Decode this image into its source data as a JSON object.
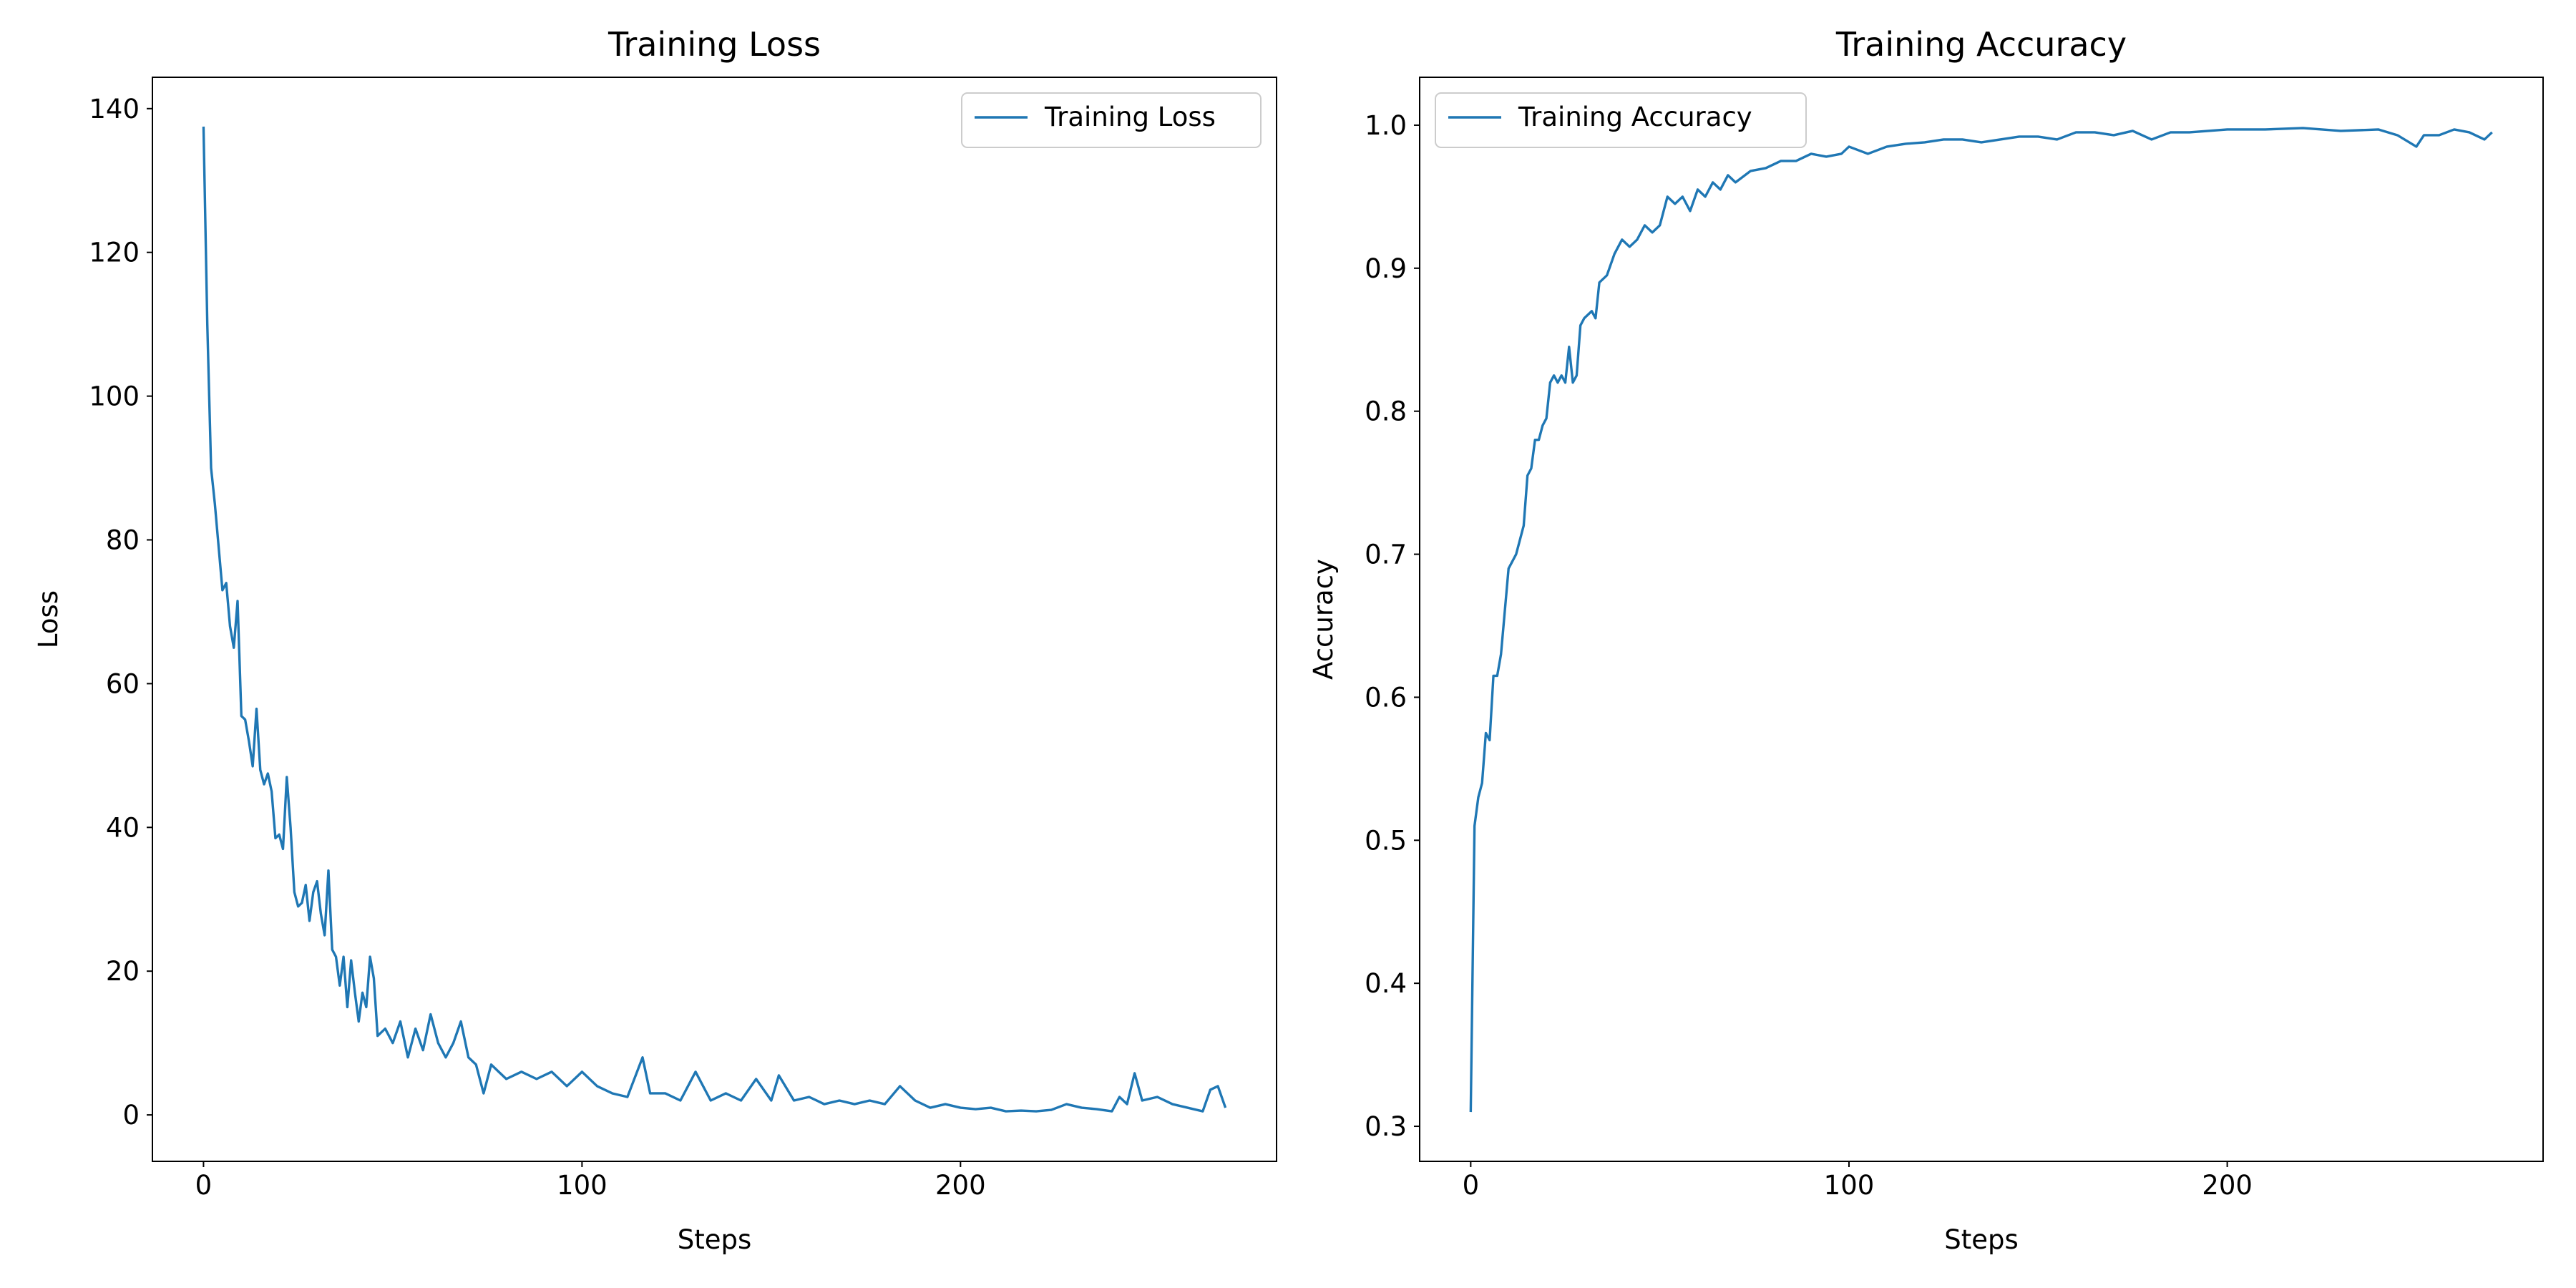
{
  "chart_data": [
    {
      "type": "line",
      "title": "Training Loss",
      "xlabel": "Steps",
      "ylabel": "Loss",
      "x": [
        0,
        1,
        2,
        3,
        4,
        5,
        6,
        7,
        8,
        9,
        10,
        11,
        12,
        13,
        14,
        15,
        16,
        17,
        18,
        19,
        20,
        21,
        22,
        23,
        24,
        25,
        26,
        27,
        28,
        29,
        30,
        31,
        32,
        33,
        34,
        35,
        36,
        37,
        38,
        39,
        40,
        41,
        42,
        43,
        44,
        45,
        46,
        48,
        50,
        52,
        54,
        56,
        58,
        60,
        62,
        64,
        66,
        68,
        70,
        72,
        74,
        76,
        78,
        80,
        84,
        88,
        92,
        96,
        100,
        104,
        108,
        112,
        116,
        118,
        122,
        126,
        130,
        134,
        138,
        142,
        146,
        150,
        152,
        156,
        160,
        164,
        168,
        172,
        176,
        180,
        184,
        188,
        192,
        196,
        200,
        204,
        208,
        212,
        216,
        220,
        224,
        228,
        232,
        236,
        240,
        242,
        244,
        246,
        248,
        252,
        256,
        260,
        264,
        266,
        268,
        270
      ],
      "series": [
        {
          "name": "Training Loss",
          "color": "#1f77b4",
          "values": [
            137.5,
            110,
            90,
            85,
            79,
            73,
            74,
            68,
            65,
            71.5,
            55.5,
            55,
            52,
            48.5,
            56.5,
            48,
            46,
            47.5,
            45,
            38.5,
            39,
            37,
            47,
            40,
            31,
            29,
            29.5,
            32,
            27,
            31,
            32.5,
            28,
            25,
            34,
            23,
            22,
            18,
            22,
            15,
            21.5,
            17,
            13,
            17,
            15,
            22,
            19,
            11,
            12,
            10,
            13,
            8,
            12,
            9,
            14,
            10,
            8,
            10,
            13,
            8,
            7,
            3,
            7,
            6,
            5,
            6,
            5,
            6,
            4,
            6,
            4,
            3,
            2.5,
            8,
            3,
            3,
            2,
            6,
            2,
            3,
            2,
            5,
            2,
            5.5,
            2,
            2.5,
            1.5,
            2,
            1.5,
            2,
            1.5,
            4,
            2,
            1,
            1.5,
            1,
            0.8,
            1,
            0.5,
            0.6,
            0.5,
            0.7,
            1.5,
            1,
            0.8,
            0.5,
            2.5,
            1.5,
            5.8,
            2,
            2.5,
            1.5,
            1,
            0.5,
            3.5,
            4,
            1
          ]
        }
      ],
      "xlim": [
        -13.5,
        283.5
      ],
      "xticks": [
        0,
        100,
        200
      ],
      "ylim": [
        -6.46,
        144.36
      ],
      "yticks": [
        0,
        20,
        40,
        60,
        80,
        100,
        120,
        140
      ],
      "legend": "upper right"
    },
    {
      "type": "line",
      "title": "Training Accuracy",
      "xlabel": "Steps",
      "ylabel": "Accuracy",
      "x": [
        0,
        1,
        2,
        3,
        4,
        5,
        6,
        7,
        8,
        10,
        12,
        14,
        15,
        16,
        17,
        18,
        19,
        20,
        21,
        22,
        23,
        24,
        25,
        26,
        27,
        28,
        29,
        30,
        32,
        33,
        34,
        36,
        38,
        40,
        42,
        44,
        46,
        48,
        50,
        52,
        54,
        56,
        58,
        60,
        62,
        64,
        66,
        68,
        70,
        74,
        78,
        82,
        86,
        90,
        94,
        98,
        100,
        105,
        110,
        115,
        120,
        125,
        130,
        135,
        140,
        145,
        150,
        155,
        160,
        165,
        170,
        175,
        180,
        185,
        190,
        195,
        200,
        210,
        220,
        230,
        240,
        245,
        250,
        252,
        256,
        260,
        264,
        268,
        270
      ],
      "series": [
        {
          "name": "Training Accuracy",
          "color": "#1f77b4",
          "values": [
            0.31,
            0.51,
            0.53,
            0.54,
            0.575,
            0.57,
            0.615,
            0.615,
            0.63,
            0.69,
            0.7,
            0.72,
            0.755,
            0.76,
            0.78,
            0.78,
            0.79,
            0.795,
            0.82,
            0.825,
            0.82,
            0.825,
            0.82,
            0.845,
            0.82,
            0.825,
            0.86,
            0.865,
            0.87,
            0.865,
            0.89,
            0.895,
            0.91,
            0.92,
            0.915,
            0.92,
            0.93,
            0.925,
            0.93,
            0.95,
            0.945,
            0.95,
            0.94,
            0.955,
            0.95,
            0.96,
            0.955,
            0.965,
            0.96,
            0.968,
            0.97,
            0.975,
            0.975,
            0.98,
            0.978,
            0.98,
            0.985,
            0.98,
            0.985,
            0.987,
            0.988,
            0.99,
            0.99,
            0.988,
            0.99,
            0.992,
            0.992,
            0.99,
            0.995,
            0.995,
            0.993,
            0.996,
            0.99,
            0.995,
            0.995,
            0.996,
            0.997,
            0.997,
            0.998,
            0.996,
            0.997,
            0.993,
            0.985,
            0.993,
            0.993,
            0.997,
            0.995,
            0.99,
            0.995
          ]
        }
      ],
      "xlim": [
        -13.5,
        283.5
      ],
      "xticks": [
        0,
        100,
        200
      ],
      "ylim": [
        0.2755,
        1.0335
      ],
      "yticks": [
        0.3,
        0.4,
        0.5,
        0.6,
        0.7,
        0.8,
        0.9,
        {
          "value": 1,
          "label": "1.0"
        }
      ],
      "legend": "upper left"
    }
  ]
}
